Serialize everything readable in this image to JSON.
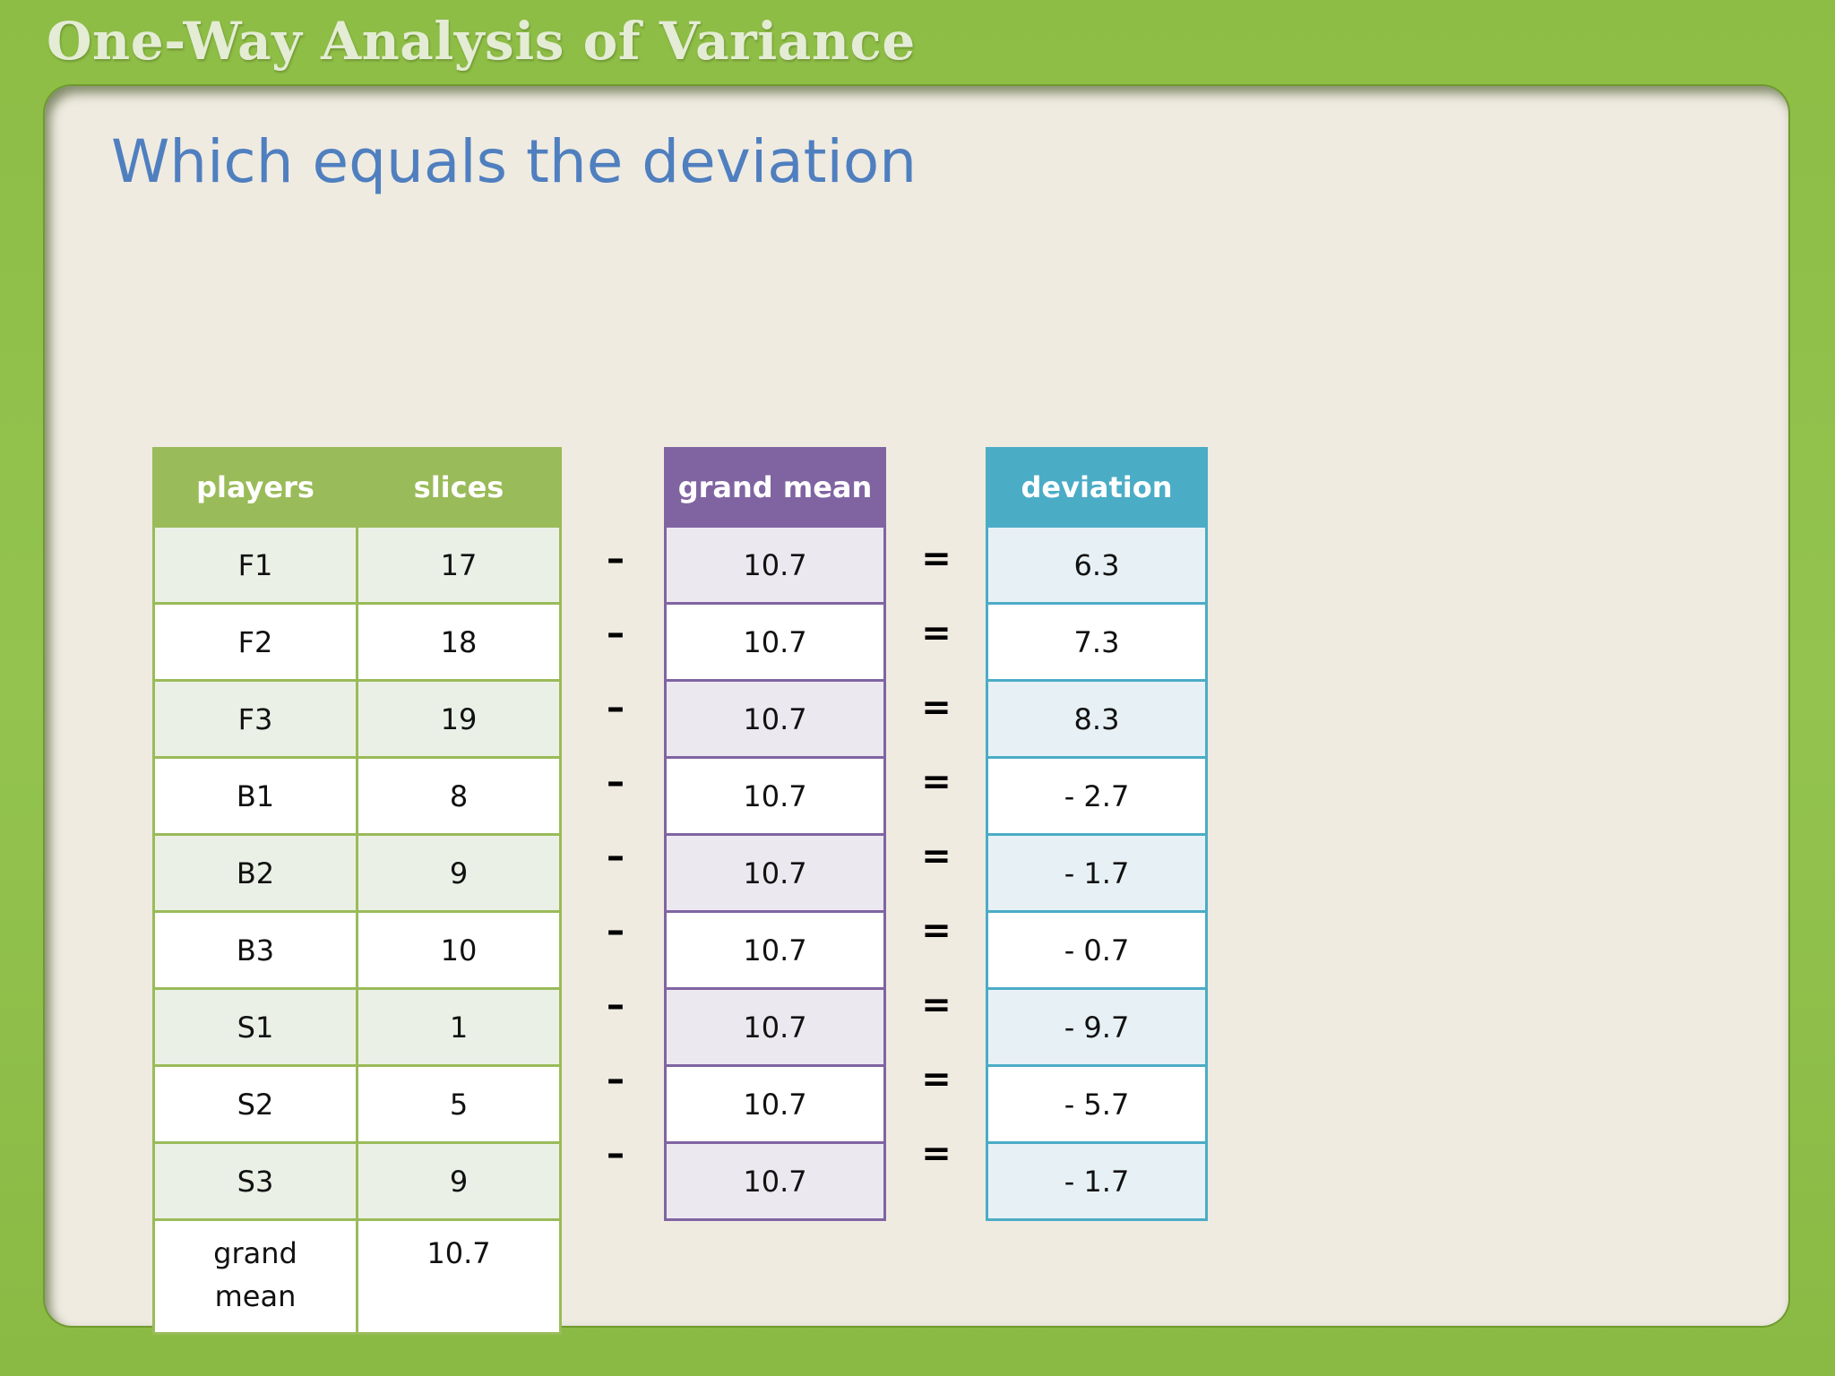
{
  "header": {
    "title": "One-Way Analysis of Variance"
  },
  "slide": {
    "title": "Which equals the deviation"
  },
  "data_table": {
    "headers": [
      "players",
      "slices"
    ],
    "rows": [
      [
        "F1",
        "17"
      ],
      [
        "F2",
        "18"
      ],
      [
        "F3",
        "19"
      ],
      [
        "B1",
        "8"
      ],
      [
        "B2",
        "9"
      ],
      [
        "B3",
        "10"
      ],
      [
        "S1",
        "1"
      ],
      [
        "S2",
        "5"
      ],
      [
        "S3",
        "9"
      ]
    ],
    "footer": {
      "label_line1": "grand",
      "label_line2": "mean",
      "value": "10.7"
    }
  },
  "grand_mean_table": {
    "header": "grand mean",
    "values": [
      "10.7",
      "10.7",
      "10.7",
      "10.7",
      "10.7",
      "10.7",
      "10.7",
      "10.7",
      "10.7"
    ]
  },
  "deviation_table": {
    "header": "deviation",
    "values": [
      "6.3",
      "7.3",
      "8.3",
      "- 2.7",
      "- 1.7",
      "- 0.7",
      "- 9.7",
      "- 5.7",
      "- 1.7"
    ]
  },
  "operators": {
    "minus": "–",
    "equals": "="
  },
  "colors": {
    "frame_green": "#94c350",
    "title_blue": "#4f7fbf",
    "table_green": "#9abb59",
    "table_purple": "#8064a2",
    "table_blue": "#4bacc6"
  }
}
